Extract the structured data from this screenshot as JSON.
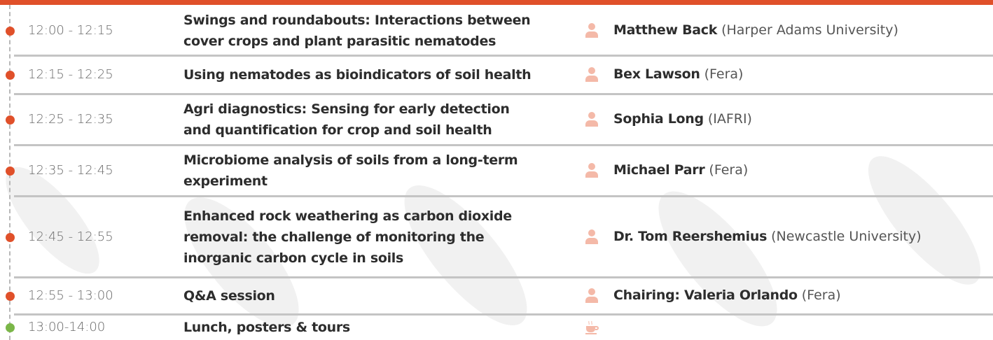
{
  "schedule": {
    "rows": [
      {
        "time": "12:00 - 12:15",
        "title": [
          "Swings and roundabouts: Interactions between",
          "cover crops and plant parasitic nematodes"
        ],
        "speaker": "Matthew Back",
        "affiliation": "(Harper Adams University)"
      },
      {
        "time": "12:15 - 12:25",
        "title": [
          "Using nematodes as bioindicators of soil health"
        ],
        "speaker": "Bex Lawson",
        "affiliation": "(Fera)"
      },
      {
        "time": "12:25 - 12:35",
        "title": [
          "Agri diagnostics: Sensing for early detection",
          "and quantification for crop and soil health"
        ],
        "speaker": "Sophia Long",
        "affiliation": "(IAFRI)"
      },
      {
        "time": "12:35 - 12:45",
        "title": [
          "Microbiome analysis of soils from a long-term",
          "experiment"
        ],
        "speaker": "Michael Parr",
        "affiliation": "(Fera)"
      },
      {
        "time": "12:45 - 12:55",
        "title": [
          "Enhanced rock weathering as carbon dioxide",
          "removal: the challenge of monitoring the",
          "inorganic carbon cycle in soils"
        ],
        "speaker": "Dr. Tom Reershemius",
        "affiliation": "(Newcastle University)"
      },
      {
        "time": "12:55 - 13:00",
        "title": [
          "Q&A session"
        ],
        "speaker": "Chairing: Valeria Orlando",
        "affiliation": "(Fera)"
      },
      {
        "time": "13:00-14:00",
        "title": [
          "Lunch, posters & tours"
        ]
      }
    ]
  }
}
